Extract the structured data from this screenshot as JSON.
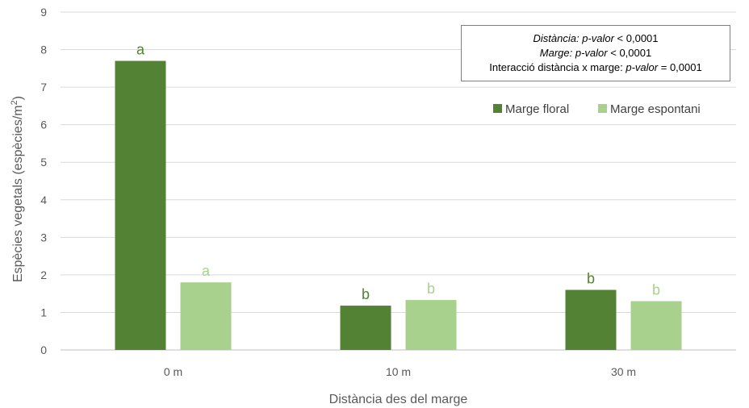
{
  "chart_data": {
    "type": "bar",
    "title": "",
    "xlabel": "Distància des del marge",
    "ylabel": "Espècies vegetals (espècies/m",
    "ylabel_superscript": "2",
    "ylabel_suffix": ")",
    "ylim": [
      0,
      9
    ],
    "yticks": [
      "0",
      "1",
      "2",
      "3",
      "4",
      "5",
      "6",
      "7",
      "8",
      "9"
    ],
    "categories": [
      "0 m",
      "10 m",
      "30 m"
    ],
    "grid": true,
    "legend_position": "top-right",
    "series": [
      {
        "name": "Marge floral",
        "color": "#548235",
        "values": [
          7.7,
          1.18,
          1.6
        ],
        "letters": [
          "a",
          "b",
          "b"
        ]
      },
      {
        "name": "Marge espontani",
        "color": "#a9d18e",
        "values": [
          1.8,
          1.33,
          1.3
        ],
        "letters": [
          "a",
          "b",
          "b"
        ]
      }
    ],
    "stats": {
      "line1_label": "Distància:",
      "line1_pv": "p-valor",
      "line1_rest": " < 0,0001",
      "line2_label": "Marge:",
      "line2_pv": "p-valor",
      "line2_rest": " < 0,0001",
      "line3_label": "Interacció distància x marge: ",
      "line3_pv": "p-valor",
      "line3_rest": " = 0,0001"
    }
  }
}
